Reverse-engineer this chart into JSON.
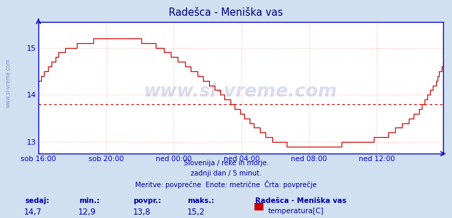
{
  "title": "Radešca - Meniška vas",
  "outer_bg_color": "#d0e0f0",
  "plot_bg_color": "#ffffff",
  "line_color": "#cc0000",
  "avg_line_color": "#cc0000",
  "avg_value": 13.8,
  "ylim": [
    12.75,
    15.55
  ],
  "yticks": [
    13,
    14,
    15
  ],
  "x_labels": [
    "sob 16:00",
    "sob 20:00",
    "ned 00:00",
    "ned 04:00",
    "ned 08:00",
    "ned 12:00"
  ],
  "grid_color": "#ffbbbb",
  "title_color": "#000080",
  "axis_color": "#0000cc",
  "text_color": "#0000aa",
  "subtitle_lines": [
    "Slovenija / reke in morje.",
    "zadnji dan / 5 minut.",
    "Meritve: povprečne  Enote: metrične  Črta: povprečje"
  ],
  "footer_labels": [
    "sedaj:",
    "min.:",
    "povpr.:",
    "maks.:"
  ],
  "footer_values": [
    "14,7",
    "12,9",
    "13,8",
    "15,2"
  ],
  "legend_title": "Radešca - Meniška vas",
  "legend_item": "temperatura[C]",
  "legend_color": "#cc0000",
  "watermark": "www.si-vreme.com",
  "watermark_color": "#4455aa",
  "left_watermark": "www.si-vreme.com",
  "num_points": 288
}
